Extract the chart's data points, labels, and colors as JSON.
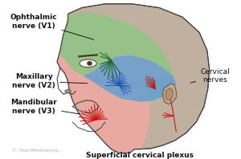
{
  "labels": {
    "ophthalmic": "Ophthalmic\nnerve (V1)",
    "maxillary": "Maxillary\nnerve (V2)",
    "mandibular": "Mandibular\nnerve (V3)",
    "cervical": "Cervical\nnerves",
    "superficial": "Superficial cervical plexus",
    "watermark": "©  TeachMeAnatomy..."
  },
  "colors": {
    "green_region": "#82c882",
    "blue_region": "#5b9fd4",
    "red_region": "#f0a8a0",
    "skin": "#c0b0a0",
    "skin_light": "#d0c0b0",
    "ear_color": "#c8a888",
    "red_nerves": "#cc1111",
    "blue_nerves": "#2255bb",
    "green_nerves": "#226622",
    "outline": "#444444",
    "white_bg": "#ffffff",
    "label_color": "#111111"
  },
  "figsize": [
    3.0,
    1.98
  ],
  "dpi": 100
}
